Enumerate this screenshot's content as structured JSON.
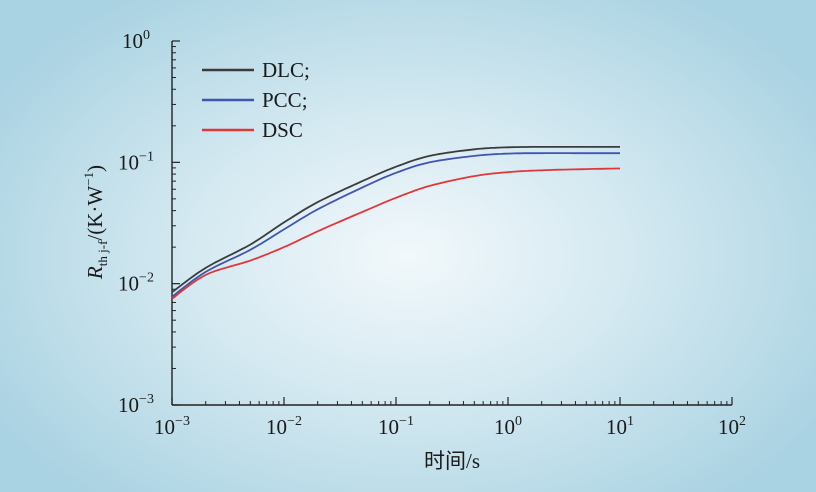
{
  "chart_data": {
    "type": "line",
    "title": "",
    "xlabel": "时间/s",
    "ylabel": {
      "italic": "R",
      "subscript": "th j-f",
      "rest": "/(K·W",
      "exponent": "−1",
      "close": ")"
    },
    "x_scale": "log",
    "y_scale": "log",
    "xlim": [
      0.001,
      100
    ],
    "ylim": [
      0.001,
      1
    ],
    "x_ticks": [
      {
        "base": "10",
        "exp": "−3",
        "value": 0.001
      },
      {
        "base": "10",
        "exp": "−2",
        "value": 0.01
      },
      {
        "base": "10",
        "exp": "−1",
        "value": 0.1
      },
      {
        "base": "10",
        "exp": "0",
        "value": 1
      },
      {
        "base": "10",
        "exp": "1",
        "value": 10
      },
      {
        "base": "10",
        "exp": "2",
        "value": 100
      }
    ],
    "y_ticks": [
      {
        "base": "10",
        "exp": "−3",
        "value": 0.001
      },
      {
        "base": "10",
        "exp": "−2",
        "value": 0.01
      },
      {
        "base": "10",
        "exp": "−1",
        "value": 0.1
      },
      {
        "base": "10",
        "exp": "0",
        "value": 1
      }
    ],
    "grid": false,
    "legend_position": "top-left",
    "series": [
      {
        "name": "DLC;",
        "color": "#3c3c3c",
        "x": [
          0.001,
          0.002,
          0.005,
          0.01,
          0.02,
          0.05,
          0.1,
          0.2,
          0.5,
          1,
          2,
          5,
          10
        ],
        "y": [
          0.0085,
          0.0135,
          0.021,
          0.032,
          0.047,
          0.07,
          0.092,
          0.113,
          0.128,
          0.133,
          0.134,
          0.134,
          0.134
        ]
      },
      {
        "name": "PCC;",
        "color": "#3f55b0",
        "x": [
          0.001,
          0.002,
          0.005,
          0.01,
          0.02,
          0.05,
          0.1,
          0.2,
          0.5,
          1,
          2,
          5,
          10
        ],
        "y": [
          0.0078,
          0.0125,
          0.019,
          0.028,
          0.041,
          0.062,
          0.082,
          0.1,
          0.113,
          0.118,
          0.119,
          0.119,
          0.119
        ]
      },
      {
        "name": "DSC",
        "color": "#e0383a",
        "x": [
          0.001,
          0.002,
          0.005,
          0.01,
          0.02,
          0.05,
          0.1,
          0.2,
          0.5,
          1,
          2,
          5,
          10
        ],
        "y": [
          0.0075,
          0.0118,
          0.0155,
          0.02,
          0.027,
          0.039,
          0.051,
          0.064,
          0.077,
          0.083,
          0.086,
          0.088,
          0.089
        ]
      }
    ]
  }
}
